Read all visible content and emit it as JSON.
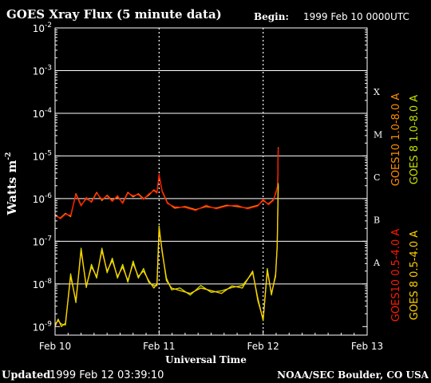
{
  "chart_data": {
    "type": "line",
    "title": "GOES Xray Flux (5 minute data)",
    "begin_label": "Begin:",
    "begin_value": "1999 Feb 10 0000UTC",
    "ylabel": "Watts m",
    "ylabel_sup": "-2",
    "xlabel": "Universal Time",
    "x_ticks": [
      "Feb 10",
      "Feb 11",
      "Feb 12",
      "Feb 13"
    ],
    "xlim_days": [
      0,
      3
    ],
    "y_scale": "log",
    "y_ticks": [
      {
        "base": "10",
        "exp": "-9"
      },
      {
        "base": "10",
        "exp": "-8"
      },
      {
        "base": "10",
        "exp": "-7"
      },
      {
        "base": "10",
        "exp": "-6"
      },
      {
        "base": "10",
        "exp": "-5"
      },
      {
        "base": "10",
        "exp": "-4"
      },
      {
        "base": "10",
        "exp": "-3"
      },
      {
        "base": "10",
        "exp": "-2"
      }
    ],
    "ylim_exp": [
      -9.2,
      -2
    ],
    "flare_classes": [
      "A",
      "B",
      "C",
      "M",
      "X"
    ],
    "flare_class_exps": [
      -7.5,
      -6.5,
      -5.5,
      -4.5,
      -3.5
    ],
    "grid_exps": [
      -8,
      -7,
      -6,
      -5,
      -4,
      -3
    ],
    "series": [
      {
        "name": "GOES10 1.0-8.0 A",
        "color": "#ff8c00"
      },
      {
        "name": "GOES 8 1.0-8.0 A",
        "color": "#c8e000"
      },
      {
        "name": "GOES10 0.5-4.0 A",
        "color": "#ff1a00"
      },
      {
        "name": "GOES 8 0.5-4.0 A",
        "color": "#ffd000"
      }
    ],
    "long_channel": {
      "days": [
        0.0,
        0.05,
        0.1,
        0.15,
        0.2,
        0.25,
        0.3,
        0.35,
        0.4,
        0.45,
        0.5,
        0.55,
        0.6,
        0.65,
        0.7,
        0.75,
        0.8,
        0.85,
        0.9,
        0.95,
        0.98,
        1.0,
        1.03,
        1.08,
        1.15,
        1.25,
        1.35,
        1.45,
        1.55,
        1.65,
        1.75,
        1.85,
        1.95,
        2.0,
        2.05,
        2.1,
        2.12,
        2.14,
        2.145
      ],
      "flux": [
        4e-07,
        3.5e-07,
        4.5e-07,
        3.8e-07,
        1.3e-06,
        7e-07,
        1e-06,
        8.5e-07,
        1.4e-06,
        9e-07,
        1.2e-06,
        9e-07,
        1.1e-06,
        8e-07,
        1.4e-06,
        1.1e-06,
        1.3e-06,
        1e-06,
        1.2e-06,
        1.6e-06,
        1.4e-06,
        3.5e-06,
        1.5e-06,
        8e-07,
        6e-07,
        6.5e-07,
        5.5e-07,
        6.5e-07,
        6e-07,
        7e-07,
        6.5e-07,
        6e-07,
        7e-07,
        9e-07,
        7.5e-07,
        9.5e-07,
        1.3e-06,
        2e-06,
        1.6e-05
      ]
    },
    "short_channel": {
      "days": [
        0.0,
        0.03,
        0.06,
        0.1,
        0.15,
        0.2,
        0.25,
        0.3,
        0.35,
        0.4,
        0.45,
        0.5,
        0.55,
        0.6,
        0.65,
        0.7,
        0.75,
        0.8,
        0.85,
        0.9,
        0.95,
        0.98,
        1.0,
        1.03,
        1.07,
        1.12,
        1.2,
        1.3,
        1.4,
        1.5,
        1.6,
        1.7,
        1.8,
        1.9,
        1.95,
        2.0,
        2.04,
        2.08,
        2.12,
        2.135,
        2.145
      ],
      "flux": [
        1e-09,
        1.5e-09,
        1e-09,
        1.2e-09,
        1.5e-08,
        4e-09,
        6e-08,
        9e-09,
        2.5e-08,
        1.5e-08,
        6e-08,
        2e-08,
        3.5e-08,
        1.5e-08,
        2.5e-08,
        1.2e-08,
        3e-08,
        1.5e-08,
        2e-08,
        1.2e-08,
        8e-09,
        1e-08,
        2e-07,
        6e-08,
        1.2e-08,
        8e-09,
        7e-09,
        6e-09,
        8e-09,
        7e-09,
        6e-09,
        9e-09,
        8e-09,
        2e-08,
        4e-09,
        1.5e-09,
        2e-08,
        6e-09,
        1.5e-08,
        8e-08,
        2e-06
      ]
    }
  },
  "footer": {
    "updated_label": "Updated",
    "updated_value": "1999 Feb 12 03:39:10",
    "credit": "NOAA/SEC Boulder, CO USA"
  }
}
